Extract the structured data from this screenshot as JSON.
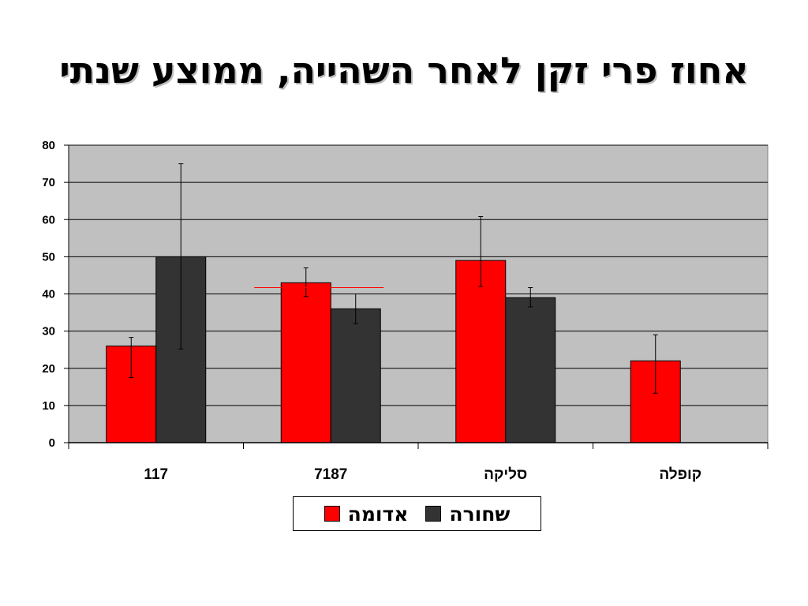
{
  "title": "אחוז פרי זקן לאחר השהייה, ממוצע שנתי",
  "colors": {
    "plot_background": "#c0c0c0",
    "series_red": "#ff0000",
    "series_dark": "#333333",
    "gridline": "#000000",
    "marker_line": "#ff0000"
  },
  "chart_data": {
    "type": "bar",
    "title": "אחוז פרי זקן לאחר השהייה, ממוצע שנתי",
    "xlabel": "",
    "ylabel": "",
    "categories": [
      "117",
      "7187",
      "סליקה",
      "קופלה"
    ],
    "ylim": [
      0,
      80
    ],
    "yticks": [
      0,
      10,
      20,
      30,
      40,
      50,
      60,
      70,
      80
    ],
    "grid": true,
    "legend_position": "bottom",
    "series": [
      {
        "name": "אדומה",
        "color": "#ff0000",
        "values": [
          26,
          43,
          49,
          22
        ],
        "error_low": [
          17.5,
          39.3,
          42,
          13.3
        ],
        "error_high": [
          28.3,
          47,
          60.8,
          29
        ]
      },
      {
        "name": "שחורה",
        "color": "#333333",
        "values": [
          50,
          36,
          39,
          null
        ],
        "error_low": [
          25.2,
          32,
          36.5,
          null
        ],
        "error_high": [
          75,
          40,
          41.7,
          null
        ]
      }
    ],
    "reference_line": {
      "value": 41.7,
      "category": "7187",
      "color": "#ff0000"
    }
  }
}
